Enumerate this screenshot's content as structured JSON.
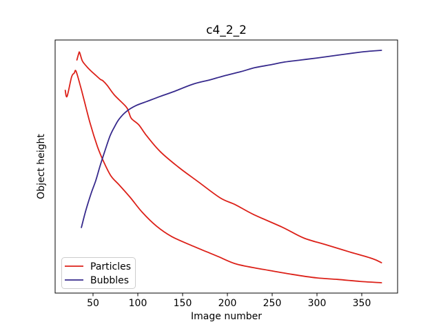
{
  "figure": {
    "title": "c4_2_2",
    "xlabel": "Image number",
    "ylabel": "Object height"
  },
  "colors": {
    "particles": "#dc2018",
    "bubbles": "#36298c",
    "axis": "#000000",
    "legend_border": "#cccccc",
    "background": "#ffffff"
  },
  "legend": {
    "position": "lower left",
    "items": [
      {
        "label": "Particles",
        "color": "#dc2018"
      },
      {
        "label": "Bubbles",
        "color": "#36298c"
      }
    ]
  },
  "axes": {
    "x_ticks": [
      50,
      100,
      150,
      200,
      250,
      300,
      350
    ],
    "x_range": [
      7,
      390
    ],
    "y_ticks": [],
    "y_range": [
      0,
      100
    ]
  },
  "chart_data": {
    "type": "line",
    "title": "c4_2_2",
    "xlabel": "Image number",
    "ylabel": "Object height",
    "y_units": "relative height, 0-100 (y axis has no tick labels)",
    "xlim": [
      7,
      390
    ],
    "ylim": [
      0,
      100
    ],
    "grid": false,
    "legend_position": "lower left",
    "series": [
      {
        "name": "particles-trace-1",
        "legend": "Particles",
        "color": "#dc2018",
        "x": [
          32,
          34,
          35,
          38,
          42,
          47,
          52,
          58,
          61,
          66,
          74,
          87,
          90,
          93,
          101,
          110,
          125,
          146,
          167,
          192,
          209,
          229,
          262,
          285,
          310,
          336,
          362,
          372
        ],
        "y": [
          92.1,
          94.6,
          95.1,
          91.8,
          89.9,
          88.0,
          86.4,
          84.5,
          83.9,
          82.0,
          78.2,
          73.6,
          71.4,
          68.9,
          66.5,
          62.1,
          55.9,
          49.6,
          44.1,
          37.6,
          34.9,
          31.1,
          25.9,
          21.8,
          19.1,
          16.3,
          13.6,
          12.0
        ]
      },
      {
        "name": "particles-trace-2",
        "legend": "Particles",
        "color": "#dc2018",
        "x": [
          19,
          21,
          26,
          29,
          31,
          36,
          40,
          47,
          55,
          62,
          70,
          79,
          92,
          105,
          121,
          138,
          162,
          177,
          190,
          208,
          228,
          246,
          272,
          300,
          323,
          348,
          372
        ],
        "y": [
          80.1,
          77.7,
          85.3,
          86.9,
          87.7,
          81.7,
          76.3,
          66.8,
          57.8,
          51.8,
          46.3,
          42.8,
          37.6,
          31.9,
          26.4,
          22.3,
          18.5,
          16.3,
          14.4,
          11.7,
          10.1,
          9.0,
          7.4,
          6.0,
          5.4,
          4.6,
          4.1
        ]
      },
      {
        "name": "bubbles-trace",
        "legend": "Bubbles",
        "color": "#36298c",
        "x": [
          37,
          42,
          48,
          53,
          58,
          63,
          69,
          74,
          79,
          87,
          98,
          110,
          125,
          140,
          162,
          180,
          196,
          215,
          231,
          248,
          264,
          282,
          300,
          323,
          346,
          360,
          372
        ],
        "y": [
          25.9,
          32.7,
          39.5,
          44.4,
          50.4,
          55.9,
          62.1,
          65.7,
          68.7,
          71.7,
          74.1,
          75.7,
          77.7,
          79.6,
          82.6,
          84.2,
          85.8,
          87.5,
          89.1,
          90.2,
          91.3,
          92.1,
          92.9,
          94.0,
          95.1,
          95.6,
          95.9
        ]
      }
    ]
  }
}
